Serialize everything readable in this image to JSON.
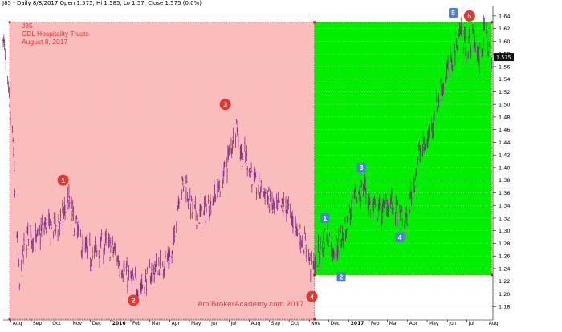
{
  "header": {
    "text": "J85 - Daily 8/8/2017 Open 1.575, Hi 1.585, Lo 1.57, Close 1.575 (0.0%)"
  },
  "annotation": {
    "ticker": "J85",
    "name": "CDL Hospitality Trusts",
    "date": "August 8, 2017"
  },
  "watermark": "AmiBrokerAcademy.com 2017",
  "last_price_tag": "1.575",
  "colors": {
    "red_zone": "#fbbcbc",
    "green_zone": "#00ee00",
    "bar": "#7a1e82",
    "circle_marker": "#e2392f",
    "square_marker": "#4d7fd6",
    "axis": "#000000"
  },
  "chart_data": {
    "type": "ohlc",
    "title": "J85 - Daily 8/8/2017 Open 1.575, Hi 1.585, Lo 1.57, Close 1.575 (0.0%)",
    "xlabel": "",
    "ylabel": "",
    "ylim": [
      1.16,
      1.65
    ],
    "y_ticks": [
      1.18,
      1.2,
      1.22,
      1.24,
      1.26,
      1.28,
      1.3,
      1.32,
      1.34,
      1.36,
      1.38,
      1.4,
      1.42,
      1.44,
      1.46,
      1.48,
      1.5,
      1.52,
      1.54,
      1.56,
      1.58,
      1.6,
      1.62,
      1.64
    ],
    "x_labels": [
      "Aug",
      "Sep",
      "Oct",
      "Nov",
      "Dec",
      "2016",
      "Feb",
      "Mar",
      "Apr",
      "May",
      "Jun",
      "Jul",
      "Aug",
      "Sep",
      "Oct",
      "Nov",
      "Dec",
      "2017",
      "Feb",
      "Mar",
      "Apr",
      "May",
      "Jun",
      "Jul",
      "Aug"
    ],
    "price_path": [
      {
        "x": "2015-07-20",
        "y": 1.61
      },
      {
        "x": "2015-07-28",
        "y": 1.51
      },
      {
        "x": "2015-08-04",
        "y": 1.44
      },
      {
        "x": "2015-08-08",
        "y": 1.34
      },
      {
        "x": "2015-08-14",
        "y": 1.21
      },
      {
        "x": "2015-08-20",
        "y": 1.26
      },
      {
        "x": "2015-08-28",
        "y": 1.3
      },
      {
        "x": "2015-09-08",
        "y": 1.28
      },
      {
        "x": "2015-09-22",
        "y": 1.31
      },
      {
        "x": "2015-10-02",
        "y": 1.3
      },
      {
        "x": "2015-10-20",
        "y": 1.32
      },
      {
        "x": "2015-10-28",
        "y": 1.35
      },
      {
        "x": "2015-11-08",
        "y": 1.31
      },
      {
        "x": "2015-11-20",
        "y": 1.27
      },
      {
        "x": "2015-12-05",
        "y": 1.26
      },
      {
        "x": "2015-12-20",
        "y": 1.28
      },
      {
        "x": "2016-01-05",
        "y": 1.27
      },
      {
        "x": "2016-01-20",
        "y": 1.24
      },
      {
        "x": "2016-02-02",
        "y": 1.22
      },
      {
        "x": "2016-02-15",
        "y": 1.21
      },
      {
        "x": "2016-03-01",
        "y": 1.23
      },
      {
        "x": "2016-03-20",
        "y": 1.25
      },
      {
        "x": "2016-04-05",
        "y": 1.26
      },
      {
        "x": "2016-04-15",
        "y": 1.36
      },
      {
        "x": "2016-04-25",
        "y": 1.38
      },
      {
        "x": "2016-05-05",
        "y": 1.33
      },
      {
        "x": "2016-05-20",
        "y": 1.32
      },
      {
        "x": "2016-06-05",
        "y": 1.35
      },
      {
        "x": "2016-06-20",
        "y": 1.38
      },
      {
        "x": "2016-07-01",
        "y": 1.42
      },
      {
        "x": "2016-07-12",
        "y": 1.47
      },
      {
        "x": "2016-07-20",
        "y": 1.42
      },
      {
        "x": "2016-07-30",
        "y": 1.41
      },
      {
        "x": "2016-08-10",
        "y": 1.37
      },
      {
        "x": "2016-08-25",
        "y": 1.36
      },
      {
        "x": "2016-09-10",
        "y": 1.33
      },
      {
        "x": "2016-09-25",
        "y": 1.34
      },
      {
        "x": "2016-10-10",
        "y": 1.31
      },
      {
        "x": "2016-10-25",
        "y": 1.28
      },
      {
        "x": "2016-11-05",
        "y": 1.24
      },
      {
        "x": "2016-11-15",
        "y": 1.26
      },
      {
        "x": "2016-11-28",
        "y": 1.3
      },
      {
        "x": "2016-12-10",
        "y": 1.27
      },
      {
        "x": "2016-12-25",
        "y": 1.3
      },
      {
        "x": "2017-01-10",
        "y": 1.35
      },
      {
        "x": "2017-01-25",
        "y": 1.37
      },
      {
        "x": "2017-02-05",
        "y": 1.33
      },
      {
        "x": "2017-02-20",
        "y": 1.33
      },
      {
        "x": "2017-03-05",
        "y": 1.35
      },
      {
        "x": "2017-03-20",
        "y": 1.32
      },
      {
        "x": "2017-03-28",
        "y": 1.31
      },
      {
        "x": "2017-04-05",
        "y": 1.35
      },
      {
        "x": "2017-04-18",
        "y": 1.42
      },
      {
        "x": "2017-05-01",
        "y": 1.44
      },
      {
        "x": "2017-05-15",
        "y": 1.5
      },
      {
        "x": "2017-05-28",
        "y": 1.54
      },
      {
        "x": "2017-06-08",
        "y": 1.57
      },
      {
        "x": "2017-06-20",
        "y": 1.62
      },
      {
        "x": "2017-07-01",
        "y": 1.59
      },
      {
        "x": "2017-07-10",
        "y": 1.61
      },
      {
        "x": "2017-07-20",
        "y": 1.57
      },
      {
        "x": "2017-07-28",
        "y": 1.62
      },
      {
        "x": "2017-08-08",
        "y": 1.575
      }
    ],
    "zones": [
      {
        "color": "red",
        "x_start": "2015-07-30",
        "x_end": "2016-11-09",
        "y_top": 1.63,
        "y_bottom": 1.16
      },
      {
        "color": "green",
        "x_start": "2016-11-09",
        "x_end": "2017-08-08",
        "y_top": 1.63,
        "y_bottom": 1.23
      }
    ],
    "wave_labels": [
      {
        "label": "1",
        "shape": "circle",
        "x": "2015-10-20",
        "y": 1.38
      },
      {
        "label": "2",
        "shape": "circle",
        "x": "2016-02-05",
        "y": 1.19
      },
      {
        "label": "3",
        "shape": "circle",
        "x": "2016-06-25",
        "y": 1.5
      },
      {
        "label": "4",
        "shape": "circle",
        "x": "2016-11-05",
        "y": 1.196
      },
      {
        "label": "5",
        "shape": "circle",
        "x": "2017-07-05",
        "y": 1.64
      },
      {
        "label": "1",
        "shape": "square",
        "x": "2016-11-25",
        "y": 1.32
      },
      {
        "label": "2",
        "shape": "square",
        "x": "2016-12-20",
        "y": 1.227
      },
      {
        "label": "3",
        "shape": "square",
        "x": "2017-01-20",
        "y": 1.4
      },
      {
        "label": "4",
        "shape": "square",
        "x": "2017-03-20",
        "y": 1.29
      },
      {
        "label": "5",
        "shape": "square",
        "x": "2017-06-10",
        "y": 1.645
      }
    ]
  }
}
